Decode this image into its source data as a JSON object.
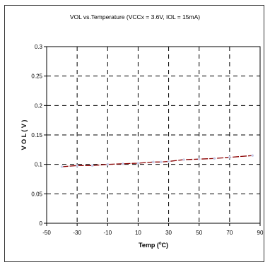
{
  "chart_data": {
    "type": "line",
    "title": "VOL vs.Temperature (VCCx = 3.6V, IOL = 15mA)",
    "xlabel_main": "Temp (",
    "xlabel_sup": "o",
    "xlabel_end": "C)",
    "ylabel": "V O L  ( V )",
    "xlim": [
      -50,
      90
    ],
    "ylim": [
      0,
      0.3
    ],
    "grid": true,
    "x_ticks": [
      "-50",
      "-30",
      "-10",
      "10",
      "30",
      "50",
      "70",
      "90"
    ],
    "y_ticks": [
      "0",
      "0.05",
      "0.1",
      "0.15",
      "0.2",
      "0.25",
      "0.3"
    ],
    "series": [
      {
        "x": [
          -40,
          -30,
          -20,
          -10,
          0,
          10,
          20,
          25,
          30,
          40,
          50,
          60,
          70,
          85
        ],
        "y": [
          0.096,
          0.098,
          0.098,
          0.1,
          0.101,
          0.102,
          0.104,
          0.104,
          0.105,
          0.108,
          0.109,
          0.11,
          0.112,
          0.115
        ],
        "line_color": "#8b0000",
        "marker_color": "#c8cce8"
      }
    ]
  }
}
